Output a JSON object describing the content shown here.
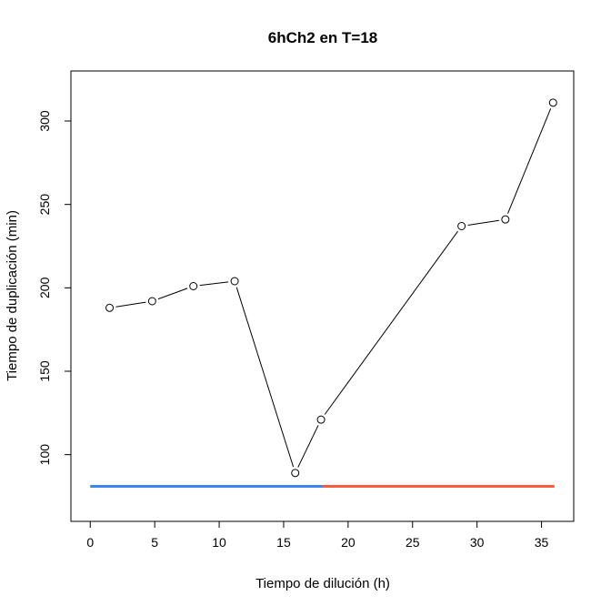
{
  "chart_data": {
    "type": "line",
    "title": "6hCh2 en T=18",
    "xlabel": "Tiempo de dilución (h)",
    "ylabel": "Tiempo de duplicación (min)",
    "xlim": [
      -1.5,
      37.5
    ],
    "ylim": [
      60,
      330
    ],
    "xticks": [
      0,
      5,
      10,
      15,
      20,
      25,
      30,
      35
    ],
    "yticks": [
      100,
      150,
      200,
      250,
      300
    ],
    "grid": false,
    "legend": "none",
    "series": [
      {
        "x": [
          1.5,
          4.8,
          8.0,
          11.2,
          15.9,
          17.9,
          28.8,
          32.2,
          35.9
        ],
        "y": [
          188,
          192,
          201,
          204,
          89,
          121,
          237,
          241,
          311
        ],
        "color": "#000000",
        "marker": "open-circle"
      }
    ],
    "segments": [
      {
        "x": [
          0,
          18
        ],
        "y": [
          81,
          81
        ],
        "color": "#3a85f2"
      },
      {
        "x": [
          18,
          36
        ],
        "y": [
          81,
          81
        ],
        "color": "#fb5a3c"
      }
    ]
  }
}
